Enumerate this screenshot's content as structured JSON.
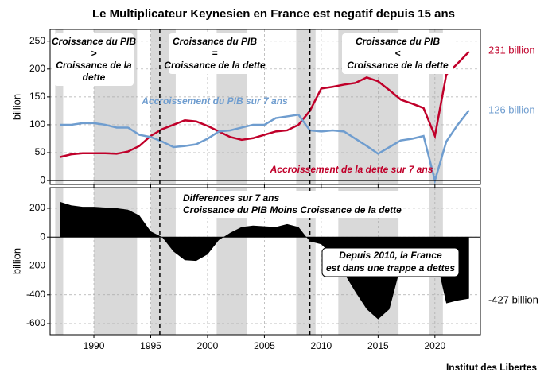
{
  "title": "Le Multiplicateur Keynesien en France est negatif depuis 15 ans",
  "source": "Institut des Libertes",
  "chart_data": [
    {
      "type": "line",
      "ylabel": "billion",
      "x": [
        1987,
        1988,
        1989,
        1990,
        1991,
        1992,
        1993,
        1994,
        1995,
        1996,
        1997,
        1998,
        1999,
        2000,
        2001,
        2002,
        2003,
        2004,
        2005,
        2006,
        2007,
        2008,
        2009,
        2010,
        2011,
        2012,
        2013,
        2014,
        2015,
        2016,
        2017,
        2018,
        2019,
        2020,
        2021,
        2022,
        2023
      ],
      "series": [
        {
          "name": "Accroissement de la dette sur 7 ans",
          "color": "#c0002a",
          "values": [
            42,
            47,
            49,
            49,
            49,
            48,
            52,
            62,
            80,
            92,
            100,
            108,
            106,
            98,
            88,
            78,
            73,
            76,
            82,
            88,
            90,
            100,
            125,
            165,
            168,
            172,
            175,
            185,
            178,
            162,
            145,
            138,
            130,
            80,
            190,
            210,
            231
          ],
          "value_labels": [
            null,
            null,
            null,
            null,
            null,
            null,
            null,
            null,
            null,
            null,
            null,
            null,
            null,
            null,
            null,
            null,
            null,
            null,
            null,
            null,
            null,
            null,
            null,
            null,
            null,
            null,
            null,
            null,
            null,
            null,
            null,
            null,
            null,
            null,
            null,
            null,
            "231 billion"
          ]
        },
        {
          "name": "Accroissement du PIB sur 7 ans",
          "color": "#6f9dcf",
          "values": [
            100,
            100,
            103,
            103,
            100,
            95,
            95,
            82,
            78,
            70,
            60,
            62,
            65,
            75,
            88,
            90,
            95,
            100,
            100,
            112,
            115,
            118,
            90,
            88,
            90,
            88,
            75,
            62,
            48,
            60,
            72,
            75,
            80,
            0,
            70,
            100,
            126
          ],
          "value_labels": [
            null,
            null,
            null,
            null,
            null,
            null,
            null,
            null,
            null,
            null,
            null,
            null,
            null,
            null,
            null,
            null,
            null,
            null,
            null,
            null,
            null,
            null,
            null,
            null,
            null,
            null,
            null,
            null,
            null,
            null,
            null,
            null,
            null,
            null,
            null,
            null,
            "126 billion"
          ]
        }
      ],
      "xlim": [
        1986.15,
        2024
      ],
      "xticks": [
        1990,
        1995,
        2000,
        2005,
        2010,
        2015,
        2020
      ],
      "ylim": [
        -7,
        271
      ],
      "yticks": [
        0,
        50,
        100,
        150,
        200,
        250
      ],
      "grid": true,
      "shaded_periods": [
        [
          1986.6,
          1987.3
        ],
        [
          1990,
          1993.8
        ],
        [
          1995,
          1997.2
        ],
        [
          2000.8,
          2003.5
        ],
        [
          2007.8,
          2009.5
        ],
        [
          2011.5,
          2016.8
        ],
        [
          2019.5,
          2020.7
        ]
      ],
      "vlines": [
        1995.8,
        2009
      ],
      "annotations": [
        [
          "Croissance du PIB",
          ">",
          "Croissance de la",
          "dette"
        ],
        [
          "Croissance du PIB",
          "=",
          "Croissance de la dette"
        ],
        [
          "Croissance du PIB",
          "<",
          "Croissance de la dette"
        ]
      ]
    },
    {
      "type": "area",
      "ylabel": "billion",
      "color": "#000000",
      "x": [
        1987,
        1988,
        1989,
        1990,
        1991,
        1992,
        1993,
        1994,
        1995,
        1996,
        1997,
        1998,
        1999,
        2000,
        2001,
        2002,
        2003,
        2004,
        2005,
        2006,
        2007,
        2008,
        2009,
        2010,
        2011,
        2012,
        2013,
        2014,
        2015,
        2016,
        2017,
        2018,
        2019,
        2020,
        2021,
        2022,
        2023
      ],
      "series": [
        {
          "name": "Differences sur 7 ans",
          "values": [
            245,
            220,
            210,
            210,
            205,
            200,
            190,
            150,
            40,
            0,
            -100,
            -160,
            -165,
            -120,
            -20,
            30,
            70,
            80,
            75,
            70,
            90,
            70,
            -30,
            -50,
            -130,
            -250,
            -380,
            -500,
            -570,
            -500,
            -200,
            -150,
            -120,
            -110,
            -460,
            -440,
            -427
          ],
          "value_labels": [
            null,
            null,
            null,
            null,
            null,
            null,
            null,
            null,
            null,
            null,
            null,
            null,
            null,
            null,
            null,
            null,
            null,
            null,
            null,
            null,
            null,
            null,
            null,
            null,
            null,
            null,
            null,
            null,
            null,
            null,
            null,
            null,
            null,
            null,
            null,
            null,
            "-427 billion"
          ]
        }
      ],
      "xlim": [
        1986.15,
        2024
      ],
      "xticks": [
        1990,
        1995,
        2000,
        2005,
        2010,
        2015,
        2020
      ],
      "ylim": [
        -677,
        343
      ],
      "yticks": [
        -600,
        -400,
        -200,
        0,
        200
      ],
      "grid": true,
      "shaded_periods": [
        [
          1986.6,
          1987.3
        ],
        [
          1990,
          1993.8
        ],
        [
          1995,
          1997.2
        ],
        [
          2000.8,
          2003.5
        ],
        [
          2007.8,
          2009.5
        ],
        [
          2011.5,
          2016.8
        ],
        [
          2019.5,
          2020.7
        ]
      ],
      "vlines": [
        1995.8,
        2009
      ],
      "annotations": [
        [
          "Croissance du PIB Moins Croissance de la dette"
        ],
        [
          "Depuis 2010, la France",
          "est dans une trappe a dettes"
        ]
      ]
    }
  ]
}
